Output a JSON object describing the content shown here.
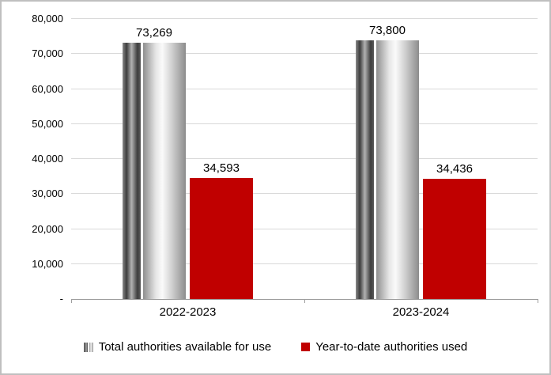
{
  "chart_data": {
    "type": "bar",
    "categories": [
      "2022-2023",
      "2023-2024"
    ],
    "series": [
      {
        "name": "Total authorities available for use",
        "values": [
          73269,
          73800
        ],
        "labels": [
          "73,269",
          "73,800"
        ],
        "style": "gray-cylinder"
      },
      {
        "name": "Year-to-date authorities used",
        "values": [
          34593,
          34436
        ],
        "labels": [
          "34,593",
          "34,436"
        ],
        "color": "#c00000"
      }
    ],
    "ylim": [
      0,
      80000
    ],
    "ytick_interval": 10000,
    "ytick_labels_bottom_up": [
      "-",
      "10,000",
      "20,000",
      "30,000",
      "40,000",
      "50,000",
      "60,000",
      "70,000",
      "80,000"
    ],
    "grid": true,
    "legend_position": "bottom"
  },
  "colors": {
    "series_red": "#c00000",
    "gridline": "#d9d9d9",
    "axis": "#9e9e9e",
    "text": "#000000",
    "frame_border": "#bfbfbf"
  }
}
